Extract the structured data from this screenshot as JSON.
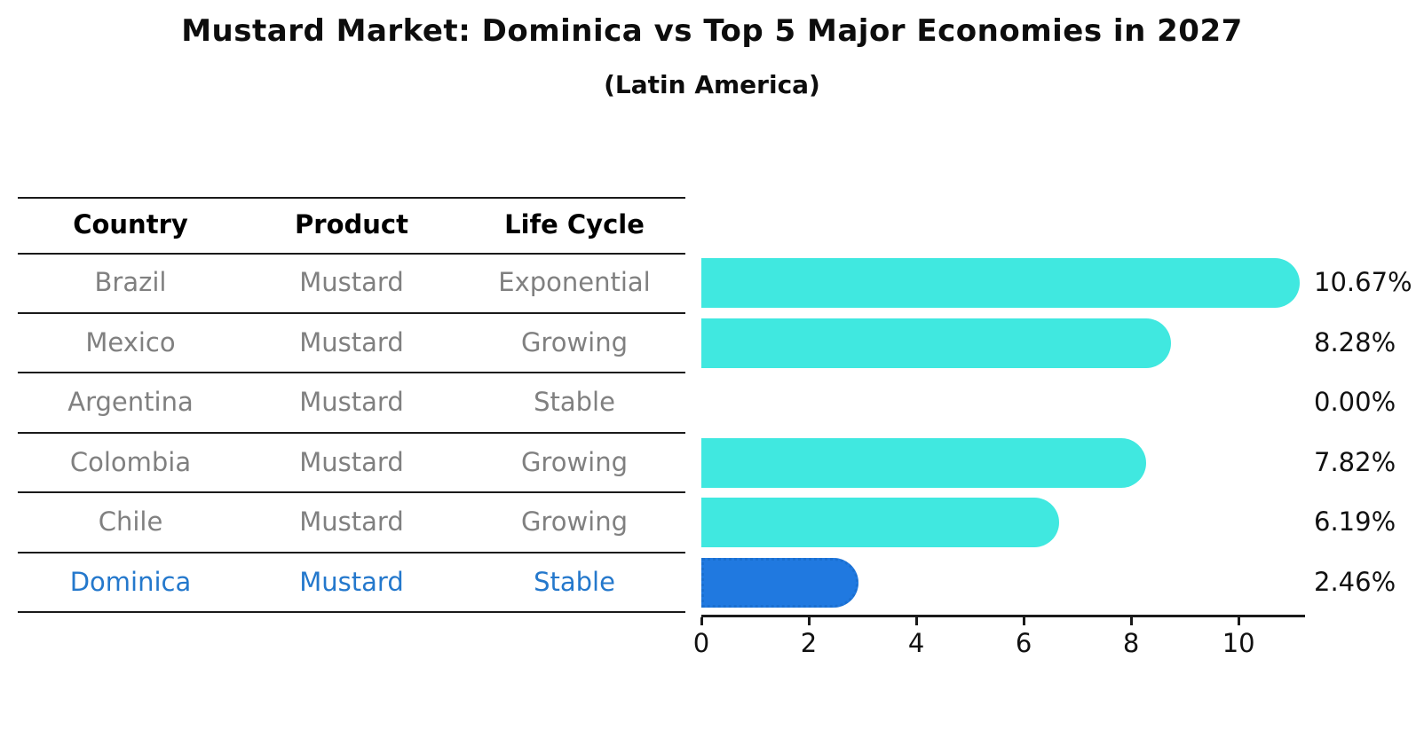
{
  "header": {
    "title": "Mustard Market: Dominica vs Top 5 Major Economies in 2027",
    "subtitle": "(Latin America)"
  },
  "table": {
    "columns": [
      "Country",
      "Product",
      "Life Cycle"
    ]
  },
  "chart_data": {
    "type": "bar",
    "orientation": "horizontal",
    "title": "Mustard Market: Dominica vs Top 5 Major Economies in 2027",
    "subtitle": "(Latin America)",
    "categories": [
      "Brazil",
      "Mexico",
      "Argentina",
      "Colombia",
      "Chile",
      "Dominica"
    ],
    "values": [
      10.67,
      8.28,
      0.0,
      7.82,
      6.19,
      2.46
    ],
    "value_labels": [
      "10.67%",
      "8.28%",
      "0.00%",
      "7.82%",
      "6.19%",
      "2.46%"
    ],
    "rows": [
      {
        "country": "Brazil",
        "product": "Mustard",
        "life_cycle": "Exponential",
        "value": 10.67,
        "label": "10.67%",
        "highlight": false
      },
      {
        "country": "Mexico",
        "product": "Mustard",
        "life_cycle": "Growing",
        "value": 8.28,
        "label": "8.28%",
        "highlight": false
      },
      {
        "country": "Argentina",
        "product": "Mustard",
        "life_cycle": "Stable",
        "value": 0.0,
        "label": "0.00%",
        "highlight": false
      },
      {
        "country": "Colombia",
        "product": "Mustard",
        "life_cycle": "Growing",
        "value": 7.82,
        "label": "7.82%",
        "highlight": false
      },
      {
        "country": "Chile",
        "product": "Mustard",
        "life_cycle": "Growing",
        "value": 6.19,
        "label": "6.19%",
        "highlight": false
      },
      {
        "country": "Dominica",
        "product": "Mustard",
        "life_cycle": "Stable",
        "value": 2.46,
        "label": "2.46%",
        "highlight": true
      }
    ],
    "x_ticks": [
      0,
      2,
      4,
      6,
      8,
      10
    ],
    "x_max": 11.22,
    "xlabel": "",
    "ylabel": "",
    "grid": false,
    "legend": false,
    "colors": {
      "bar": "#40e8e0",
      "highlight_bar": "#2079e0",
      "highlight_bar_border": "#1a6fd0",
      "highlight_text": "#2478cc",
      "row_text": "#808080",
      "header_text": "#000000",
      "axis": "#1a1a1a"
    }
  }
}
